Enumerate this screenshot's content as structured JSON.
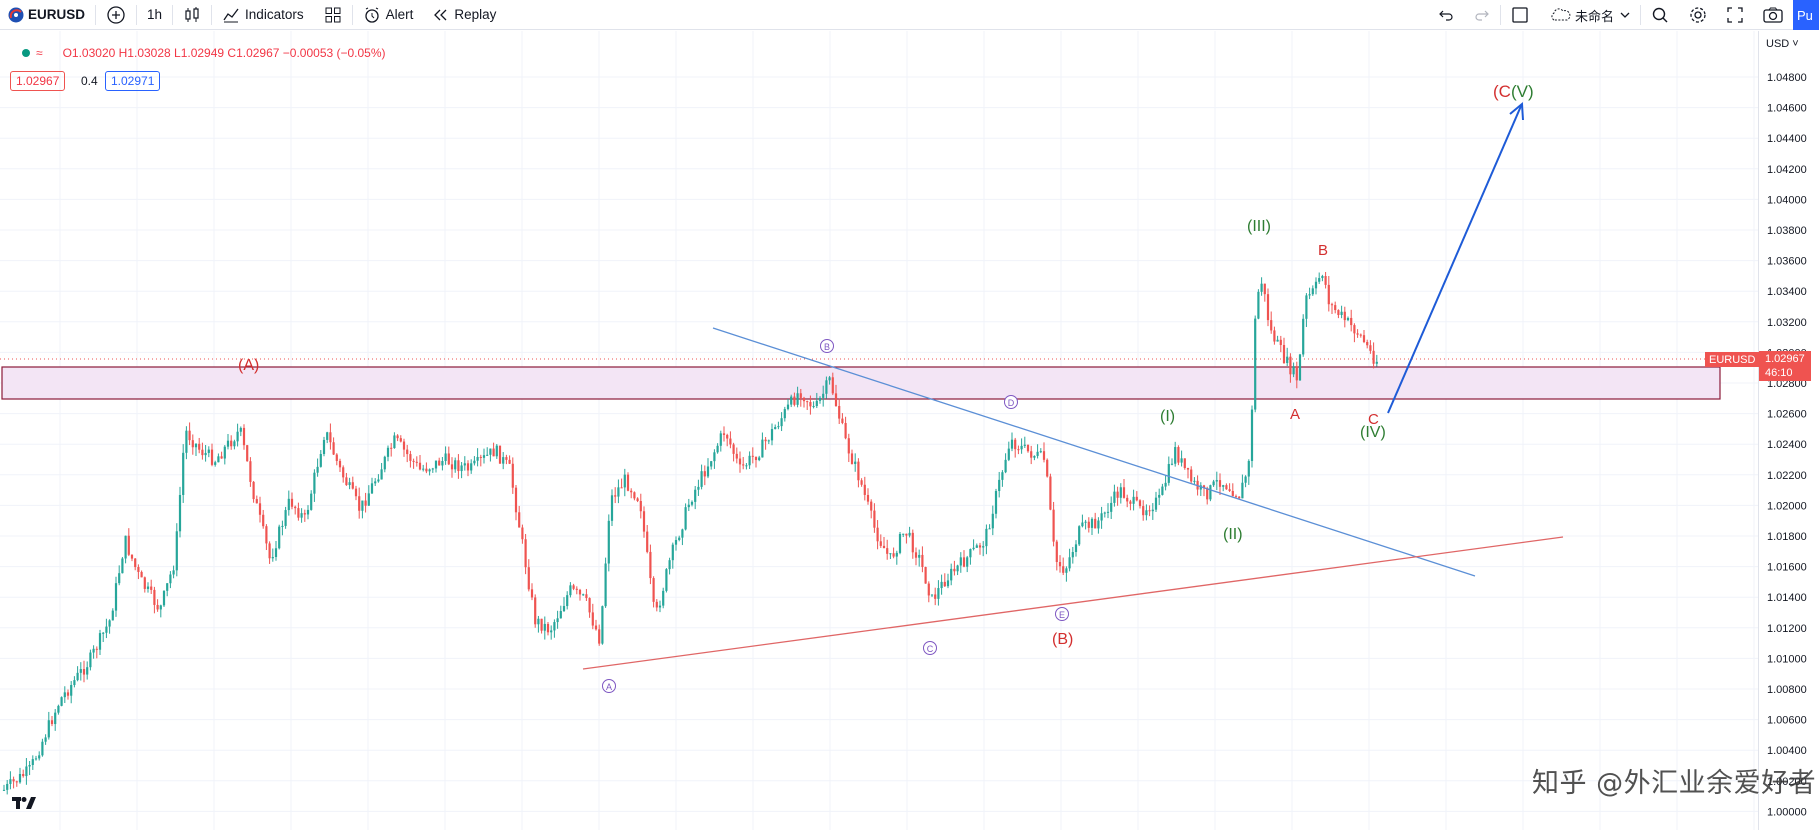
{
  "toolbar": {
    "symbol": "EURUSD",
    "interval": "1h",
    "indicators_label": "Indicators",
    "alert_label": "Alert",
    "replay_label": "Replay",
    "layout_name": "未命名",
    "publish_label": "Pu"
  },
  "legend": {
    "ohlc": "O1.03020 H1.03028 L1.02949 C1.02967 −0.00053 (−0.05%)",
    "bid": "1.02967",
    "spread": "0.4",
    "ask": "1.02971"
  },
  "price_axis": {
    "currency": "USD",
    "ticks": [
      "1.04800",
      "1.04600",
      "1.04400",
      "1.04200",
      "1.04000",
      "1.03800",
      "1.03600",
      "1.03400",
      "1.03200",
      "1.03000",
      "1.02800",
      "1.02600",
      "1.02400",
      "1.02200",
      "1.02000",
      "1.01800",
      "1.01600",
      "1.01400",
      "1.01200",
      "1.01000",
      "1.00800",
      "1.00600",
      "1.00400",
      "1.00200",
      "1.00000"
    ],
    "symbol_tag": "EURUSD",
    "last_price": "1.02967",
    "countdown": "46:10"
  },
  "annotations": {
    "wave_A_paren": "(A)",
    "wave_B_paren": "(B)",
    "wave_C_V": "(C(V)",
    "wave_I": "(I)",
    "wave_II": "(II)",
    "wave_III": "(III)",
    "wave_IV": "(IV)",
    "small_A": "A",
    "small_B": "B",
    "small_C": "C",
    "circle_A": "A",
    "circle_B": "B",
    "circle_C": "C",
    "circle_D": "D",
    "circle_E": "E"
  },
  "watermark": "知乎 @外汇业余爱好者",
  "colors": {
    "up": "#26a69a",
    "down": "#ef5350",
    "wave_red": "#d32f2f",
    "wave_green": "#2e7d32",
    "circle": "#7e57c2",
    "trendline_blue": "#5b8fd6",
    "trendline_red": "#e06666",
    "zone_fill": "#f3e5f5",
    "zone_border": "#8b1a3a",
    "arrow": "#1e5bd7",
    "accent": "#2962ff"
  }
}
